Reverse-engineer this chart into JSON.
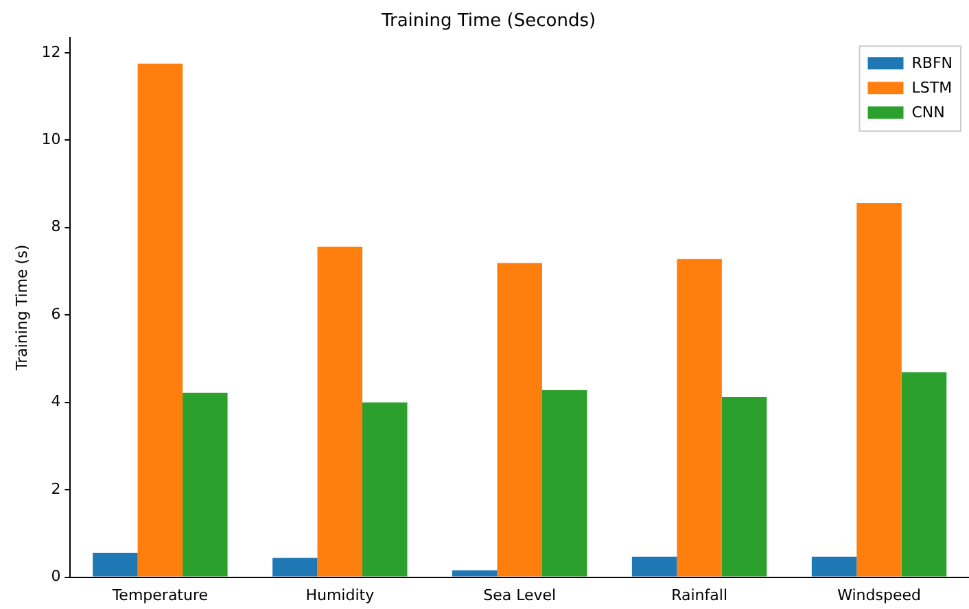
{
  "chart_data": {
    "type": "bar",
    "title": "Training Time (Seconds)",
    "ylabel": "Training Time (s)",
    "categories": [
      "Temperature",
      "Humidity",
      "Sea Level",
      "Rainfall",
      "Windspeed"
    ],
    "series": [
      {
        "name": "RBFN",
        "color": "#1f77b4",
        "values": [
          0.56,
          0.44,
          0.16,
          0.47,
          0.47
        ]
      },
      {
        "name": "LSTM",
        "color": "#ff7f0e",
        "values": [
          11.75,
          7.56,
          7.19,
          7.28,
          8.56
        ]
      },
      {
        "name": "CNN",
        "color": "#2ca02c",
        "values": [
          4.22,
          4.0,
          4.28,
          4.12,
          4.69
        ]
      }
    ],
    "ylim": [
      0,
      12.34
    ],
    "yticks": [
      0,
      2,
      4,
      6,
      8,
      10,
      12
    ],
    "grid": false,
    "legend": "top right"
  }
}
